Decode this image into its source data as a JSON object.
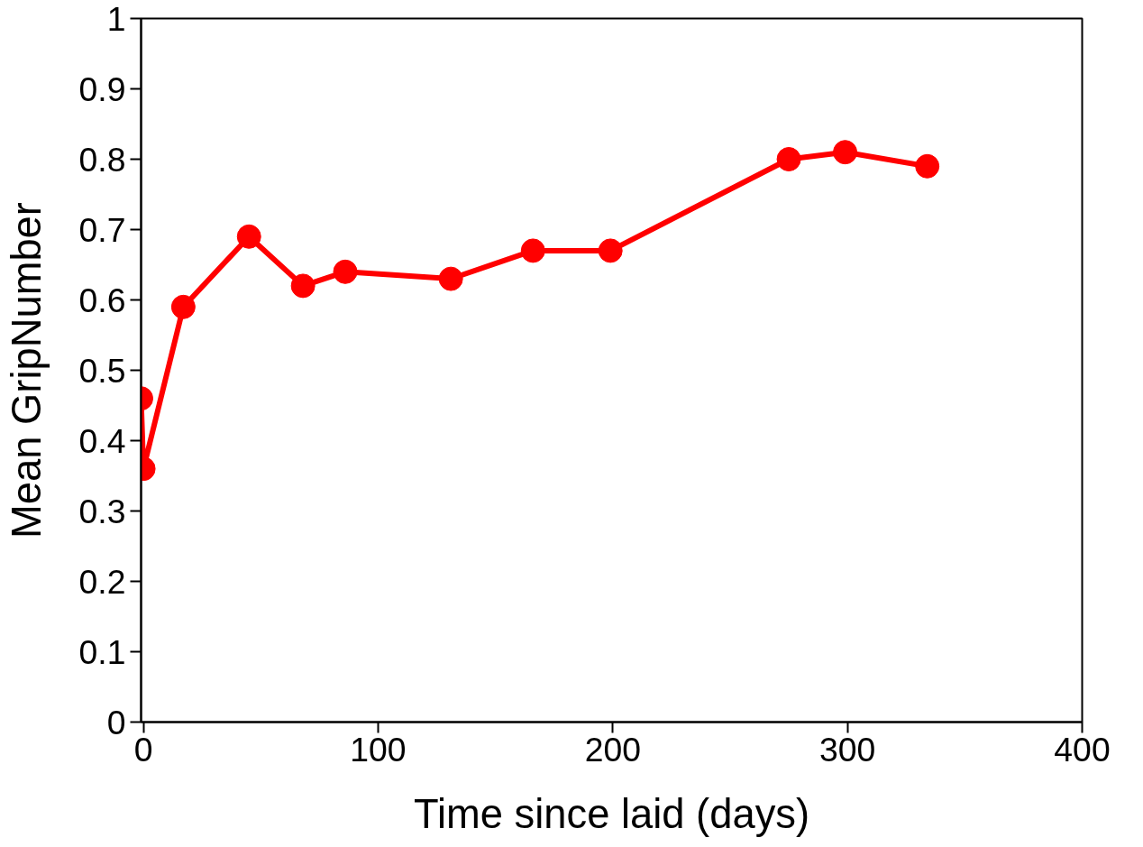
{
  "chart_data": {
    "type": "line",
    "xlabel": "Time since laid (days)",
    "ylabel": "Mean GripNumber",
    "x": [
      -1,
      0,
      17,
      45,
      68,
      86,
      131,
      166,
      199,
      275,
      299,
      334
    ],
    "series": [
      {
        "color": "#ff0000",
        "values": [
          0.46,
          0.36,
          0.59,
          0.69,
          0.62,
          0.64,
          0.63,
          0.67,
          0.67,
          0.8,
          0.81,
          0.79
        ]
      }
    ],
    "xlim": [
      -1,
      400
    ],
    "xticks": [
      0,
      100,
      200,
      300,
      400
    ],
    "ylim": [
      0,
      1
    ],
    "yticks": [
      0,
      {
        "value": 0.1,
        "label": "0.1"
      },
      {
        "value": 0.2,
        "label": "0.2"
      },
      {
        "value": 0.3,
        "label": "0.3"
      },
      {
        "value": 0.4,
        "label": "0.4"
      },
      {
        "value": 0.5,
        "label": "0.5"
      },
      {
        "value": 0.6,
        "label": "0.6"
      },
      {
        "value": 0.7,
        "label": "0.7"
      },
      {
        "value": 0.8,
        "label": "0.8"
      },
      {
        "value": 0.9,
        "label": "0.9"
      },
      1
    ],
    "marker": "circle",
    "line_style": "solid",
    "grid": false
  }
}
